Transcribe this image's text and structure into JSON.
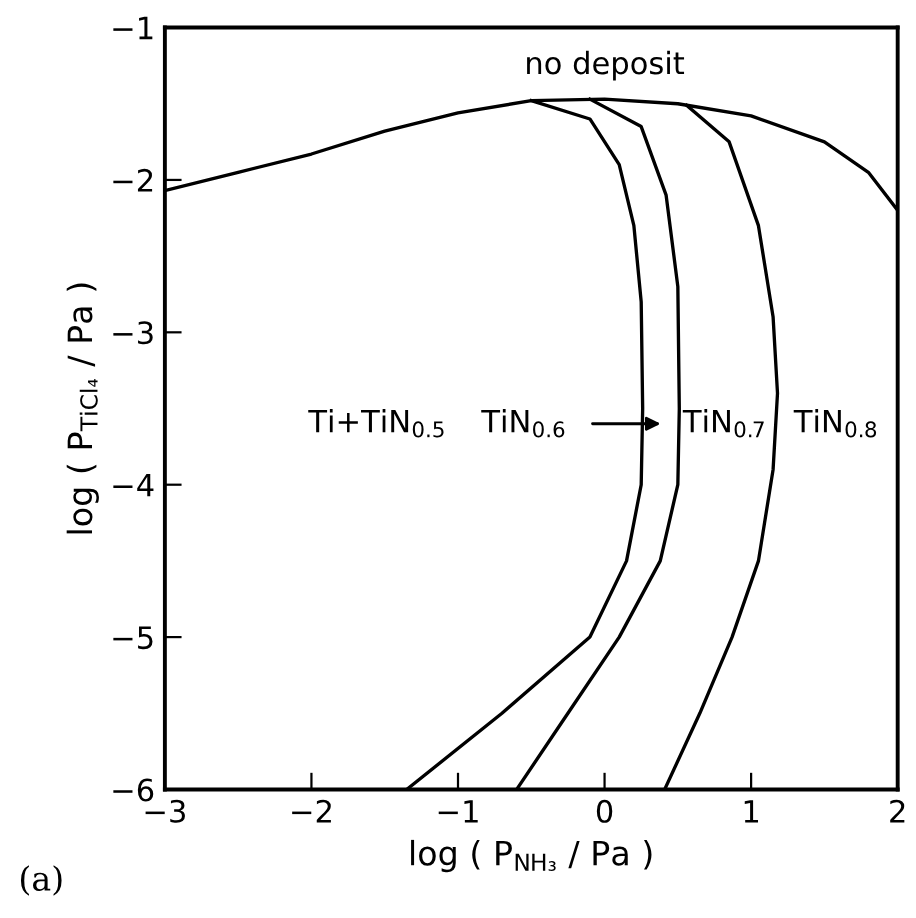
{
  "chart_data": {
    "type": "line",
    "xlabel": "log ( P$_{NH₃}$ / Pa )",
    "ylabel": "log ( P$_{TiCl₄}$ / Pa )",
    "series": [
      {
        "color": "#000000",
        "x": [
          -3,
          -2.5,
          -2,
          -1.5,
          -1,
          -0.5,
          0,
          0.5,
          1,
          1.5,
          1.8,
          2
        ],
        "values": [
          -2.07,
          -1.95,
          -1.83,
          -1.68,
          -1.56,
          -1.48,
          -1.47,
          -1.5,
          -1.58,
          -1.75,
          -1.95,
          -2.2
        ]
      },
      {
        "color": "#000000",
        "x": [
          -0.5,
          -0.1,
          0.1,
          0.2,
          0.25,
          0.26,
          0.25,
          0.15,
          -0.1,
          -0.7,
          -1.35
        ],
        "values": [
          -1.48,
          -1.6,
          -1.9,
          -2.3,
          -2.8,
          -3.5,
          -4.0,
          -4.5,
          -5.0,
          -5.5,
          -6
        ]
      },
      {
        "color": "#000000",
        "x": [
          -0.1,
          0.25,
          0.42,
          0.5,
          0.51,
          0.5,
          0.38,
          0.1,
          -0.25,
          -0.6
        ],
        "values": [
          -1.47,
          -1.65,
          -2.1,
          -2.7,
          -3.5,
          -4.0,
          -4.5,
          -5.0,
          -5.5,
          -6
        ]
      },
      {
        "color": "#000000",
        "x": [
          0.56,
          0.85,
          1.05,
          1.15,
          1.18,
          1.15,
          1.05,
          0.87,
          0.65,
          0.41
        ],
        "values": [
          -1.51,
          -1.75,
          -2.3,
          -2.9,
          -3.4,
          -3.9,
          -4.5,
          -5.0,
          -5.5,
          -6
        ]
      }
    ],
    "annotations": [
      "no deposit",
      "Ti+TiN$_{0.5}$",
      "TiN$_{0.6}$",
      "TiN$_{0.7}$",
      "TiN$_{0.8}$",
      "(a)"
    ],
    "xlim": [
      -3,
      2
    ],
    "ylim": [
      -6,
      -1
    ],
    "xticks": [
      -3,
      -2,
      -1,
      0,
      1,
      2
    ],
    "yticks": [
      -6,
      -5,
      -4,
      -3,
      -2,
      -1
    ],
    "grid": false,
    "legend": false,
    "marker": "none",
    "line_style": "solid"
  }
}
